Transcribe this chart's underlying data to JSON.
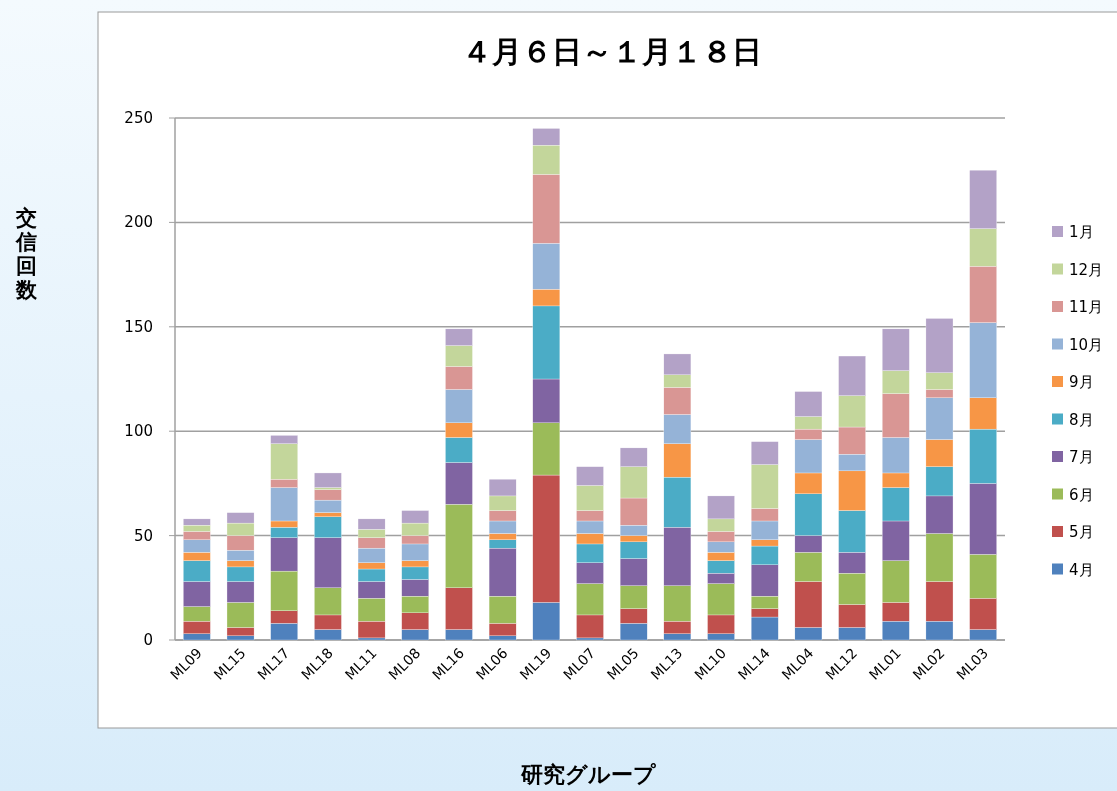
{
  "chart_data": {
    "type": "bar",
    "stacked": true,
    "title": "４月６日～１月１８日",
    "xlabel": "研究グループ",
    "ylabel": "交信回数",
    "categories": [
      "ML09",
      "ML15",
      "ML17",
      "ML18",
      "ML11",
      "ML08",
      "ML16",
      "ML06",
      "ML19",
      "ML07",
      "ML05",
      "ML13",
      "ML10",
      "ML14",
      "ML04",
      "ML12",
      "ML01",
      "ML02",
      "ML03"
    ],
    "series": [
      {
        "name": "4月",
        "color": "#4f81bd",
        "values": [
          3,
          2,
          8,
          5,
          1,
          5,
          5,
          2,
          18,
          1,
          8,
          3,
          3,
          11,
          6,
          6,
          9,
          9,
          5
        ]
      },
      {
        "name": "5月",
        "color": "#c0504d",
        "values": [
          6,
          4,
          6,
          7,
          8,
          8,
          20,
          6,
          61,
          11,
          7,
          6,
          9,
          4,
          22,
          11,
          9,
          19,
          15
        ]
      },
      {
        "name": "6月",
        "color": "#9bbb59",
        "values": [
          7,
          12,
          19,
          13,
          11,
          8,
          40,
          13,
          25,
          15,
          11,
          17,
          15,
          6,
          14,
          15,
          20,
          23,
          21
        ]
      },
      {
        "name": "7月",
        "color": "#8064a2",
        "values": [
          12,
          10,
          16,
          24,
          8,
          8,
          20,
          23,
          21,
          10,
          13,
          28,
          5,
          15,
          8,
          10,
          19,
          18,
          34
        ]
      },
      {
        "name": "8月",
        "color": "#4bacc6",
        "values": [
          10,
          7,
          5,
          10,
          6,
          6,
          12,
          4,
          35,
          9,
          8,
          24,
          6,
          9,
          20,
          20,
          16,
          14,
          26
        ]
      },
      {
        "name": "9月",
        "color": "#f79646",
        "values": [
          4,
          3,
          3,
          2,
          3,
          3,
          7,
          3,
          8,
          5,
          3,
          16,
          4,
          3,
          10,
          19,
          7,
          13,
          15
        ]
      },
      {
        "name": "10月",
        "color": "#95b3d7",
        "values": [
          6,
          5,
          16,
          6,
          7,
          8,
          16,
          6,
          22,
          6,
          5,
          14,
          5,
          9,
          16,
          8,
          17,
          20,
          36
        ]
      },
      {
        "name": "11月",
        "color": "#d99694",
        "values": [
          4,
          7,
          4,
          5,
          5,
          4,
          11,
          5,
          33,
          5,
          13,
          13,
          5,
          6,
          5,
          13,
          21,
          4,
          27
        ]
      },
      {
        "name": "12月",
        "color": "#c3d69b",
        "values": [
          3,
          6,
          17,
          1,
          4,
          6,
          10,
          7,
          14,
          12,
          15,
          6,
          6,
          21,
          6,
          15,
          11,
          8,
          18
        ]
      },
      {
        "name": "1月",
        "color": "#b3a2c7",
        "values": [
          3,
          5,
          4,
          7,
          5,
          6,
          8,
          8,
          8,
          9,
          9,
          10,
          11,
          11,
          12,
          19,
          20,
          26,
          28
        ]
      }
    ],
    "ylim": [
      0,
      250
    ],
    "yticks": [
      0,
      50,
      100,
      150,
      200,
      250
    ],
    "grid": "y",
    "legend": "right"
  }
}
